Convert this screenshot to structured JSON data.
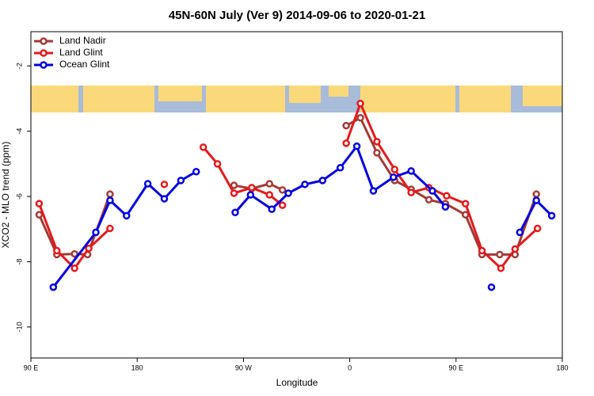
{
  "chart_data": {
    "type": "line",
    "title": "45N-60N July (Ver 9)   2014-09-06 to 2020-01-21",
    "x_label": "Longitude",
    "y_label": "XCO2 - MLO trend (ppm)",
    "xlim": [
      90,
      540
    ],
    "ylim": [
      -10.95,
      -0.95
    ],
    "xticks": [
      {
        "value": 90,
        "label": "90 E"
      },
      180,
      {
        "value": 270,
        "label": "90 W"
      },
      {
        "value": 360,
        "label": "0"
      },
      {
        "value": 450,
        "label": "90 E"
      },
      {
        "value": 540,
        "label": "180"
      }
    ],
    "yticks": [
      -10,
      -8,
      -6,
      -4,
      -2
    ],
    "legend": "top-left",
    "series": [
      {
        "name": "Land Nadir",
        "color": "#a33a35",
        "x": [
          97,
          112,
          127,
          138,
          157,
          null,
          262,
          277,
          292,
          303,
          null,
          357,
          369,
          383,
          398,
          412,
          427,
          441,
          458,
          472,
          487,
          500,
          518
        ],
        "values": [
          -6.56,
          -7.78,
          -7.76,
          -7.78,
          -5.93,
          null,
          -5.66,
          -5.76,
          -5.61,
          -5.8,
          null,
          -3.83,
          -3.59,
          -4.66,
          -5.51,
          -5.78,
          -6.1,
          -6.22,
          -6.56,
          -7.78,
          -7.78,
          -7.78,
          -5.93
        ]
      },
      {
        "name": "Land Glint",
        "color": "#e31a1c",
        "x": [
          97,
          112,
          127,
          139,
          157,
          null,
          203,
          null,
          236,
          248,
          262,
          277,
          292,
          303,
          null,
          357,
          369,
          383,
          398,
          412,
          427,
          442,
          458,
          472,
          488,
          500,
          519
        ],
        "values": [
          -6.22,
          -7.66,
          -8.2,
          -7.59,
          -6.98,
          null,
          -5.63,
          null,
          -4.49,
          -5.0,
          -5.9,
          -5.73,
          -5.95,
          -6.27,
          null,
          -4.37,
          -3.15,
          -4.32,
          -5.17,
          -5.88,
          -5.73,
          -5.98,
          -6.22,
          -7.66,
          -8.2,
          -7.61,
          -6.98
        ]
      },
      {
        "name": "Ocean Glint",
        "color": "#0000e0",
        "x": [
          109,
          145,
          157,
          171,
          189,
          203,
          217,
          230,
          null,
          263,
          276,
          294,
          308,
          322,
          337,
          352,
          366,
          380,
          397,
          412,
          430,
          441,
          null,
          480,
          null,
          504,
          518,
          531
        ],
        "values": [
          -8.78,
          -7.1,
          -6.12,
          -6.59,
          -5.61,
          -6.07,
          -5.51,
          -5.24,
          null,
          -6.49,
          -5.95,
          -6.39,
          -5.9,
          -5.63,
          -5.51,
          -5.12,
          -4.46,
          -5.83,
          -5.41,
          -5.22,
          -5.83,
          -6.32,
          null,
          -8.78,
          null,
          -7.1,
          -6.12,
          -6.59
        ]
      }
    ]
  }
}
